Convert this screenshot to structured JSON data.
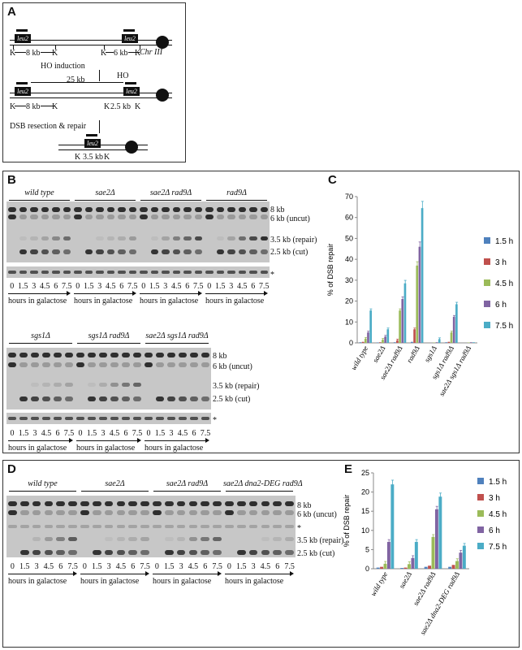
{
  "panelA": {
    "label": "A",
    "leu2": "leu2",
    "k": "K",
    "ho": "HO",
    "chr": "Chr III",
    "top_8kb": "8 kb",
    "top_6kb": "6 kb",
    "ho_induction": "HO induction",
    "mid_25kb": "25 kb",
    "mid_8kb": "8 kb",
    "mid_2_5kb": "2.5 kb",
    "resection": "DSB resection & repair",
    "bot_3_5kb": "3.5 kb"
  },
  "panelB": {
    "label": "B",
    "top_groups": [
      "wild type",
      "sae2Δ",
      "sae2Δ rad9Δ",
      "rad9Δ"
    ],
    "bottom_groups": [
      "sgs1Δ",
      "sgs1Δ rad9Δ",
      "sae2Δ sgs1Δ rad9Δ"
    ],
    "timepoints": [
      "0",
      "1.5",
      "3",
      "4.5",
      "6",
      "7.5"
    ],
    "hours": "hours in galactose",
    "bands": [
      "8 kb",
      "6 kb (uncut)",
      "3.5 kb (repair)",
      "2.5 kb (cut)"
    ],
    "asterisk": "*"
  },
  "panelD": {
    "label": "D",
    "groups": [
      "wild type",
      "sae2Δ",
      "sae2Δ rad9Δ",
      "sae2Δ dna2-DEG rad9Δ"
    ],
    "timepoints": [
      "0",
      "1.5",
      "3",
      "4.5",
      "6",
      "7.5"
    ],
    "hours": "hours in galactose",
    "bands": [
      "8 kb",
      "6 kb (uncut)",
      "*",
      "3.5 kb (repair)",
      "2.5 kb (cut)"
    ]
  },
  "panelC": {
    "label": "C",
    "chart_data": {
      "type": "bar",
      "ylabel": "% of DSB repair",
      "ylim": [
        0,
        70
      ],
      "yticks": [
        0,
        10,
        20,
        30,
        40,
        50,
        60,
        70
      ],
      "categories": [
        "wild type",
        "sae2Δ",
        "sae2Δ rad9Δ",
        "rad9Δ",
        "sgs1Δ",
        "sgs1Δ rad9Δ",
        "sae2Δ sgs1Δ rad9Δ"
      ],
      "series": [
        {
          "name": "1.5 h",
          "color": "#4f81bd",
          "values": [
            0.3,
            0.2,
            0.3,
            0.5,
            0,
            0.3,
            0
          ]
        },
        {
          "name": "3 h",
          "color": "#c0504d",
          "values": [
            0.5,
            0.3,
            1.2,
            6.5,
            0,
            0.5,
            0
          ]
        },
        {
          "name": "4.5 h",
          "color": "#9bbb59",
          "values": [
            2,
            1.5,
            15.5,
            37,
            0.2,
            5,
            0.2
          ]
        },
        {
          "name": "6 h",
          "color": "#8064a2",
          "values": [
            5,
            3,
            21,
            46,
            0.3,
            12.5,
            0.3
          ]
        },
        {
          "name": "7.5 h",
          "color": "#4bacc6",
          "values": [
            15.5,
            6.5,
            28.5,
            64.5,
            1.8,
            18.5,
            0.3
          ]
        }
      ]
    }
  },
  "panelE": {
    "label": "E",
    "chart_data": {
      "type": "bar",
      "ylabel": "% of DSB repair",
      "ylim": [
        0,
        25
      ],
      "yticks": [
        0,
        5,
        10,
        15,
        20,
        25
      ],
      "categories": [
        "wild type",
        "sae2Δ",
        "sae2Δ rad9Δ",
        "sae2Δ dna2-DEG rad9Δ"
      ],
      "series": [
        {
          "name": "1.5 h",
          "color": "#4f81bd",
          "values": [
            0.3,
            0.2,
            0.5,
            0.5
          ]
        },
        {
          "name": "3 h",
          "color": "#c0504d",
          "values": [
            0.5,
            0.3,
            0.8,
            1
          ]
        },
        {
          "name": "4.5 h",
          "color": "#9bbb59",
          "values": [
            1.3,
            1.2,
            8.3,
            2
          ]
        },
        {
          "name": "6 h",
          "color": "#8064a2",
          "values": [
            7,
            2.8,
            15.5,
            4.2
          ]
        },
        {
          "name": "7.5 h",
          "color": "#4bacc6",
          "values": [
            22,
            7,
            18.8,
            6
          ]
        }
      ]
    }
  }
}
